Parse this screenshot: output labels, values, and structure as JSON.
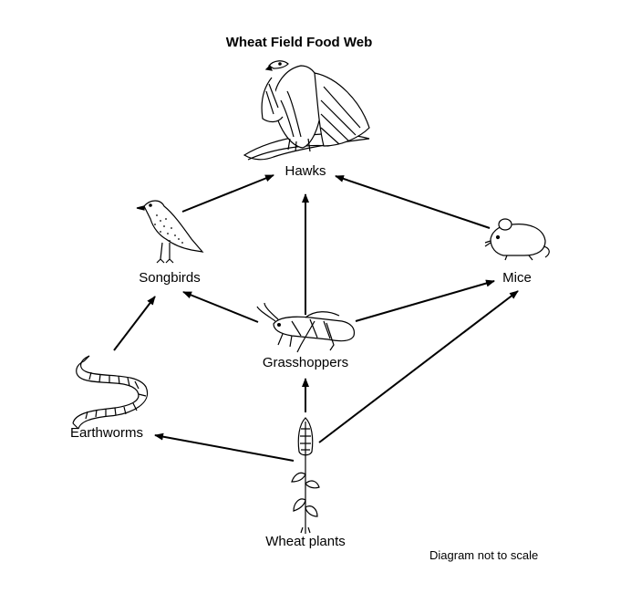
{
  "title": "Wheat Field Food Web",
  "note": "Diagram not to scale",
  "organisms": {
    "hawks": "Hawks",
    "songbirds": "Songbirds",
    "mice": "Mice",
    "grasshoppers": "Grasshoppers",
    "earthworms": "Earthworms",
    "wheat": "Wheat plants"
  },
  "links": [
    {
      "from": "Songbirds",
      "to": "Hawks"
    },
    {
      "from": "Grasshoppers",
      "to": "Hawks"
    },
    {
      "from": "Mice",
      "to": "Hawks"
    },
    {
      "from": "Grasshoppers",
      "to": "Songbirds"
    },
    {
      "from": "Grasshoppers",
      "to": "Mice"
    },
    {
      "from": "Earthworms",
      "to": "Songbirds"
    },
    {
      "from": "Wheat plants",
      "to": "Grasshoppers"
    },
    {
      "from": "Wheat plants",
      "to": "Earthworms"
    },
    {
      "from": "Wheat plants",
      "to": "Mice"
    }
  ]
}
